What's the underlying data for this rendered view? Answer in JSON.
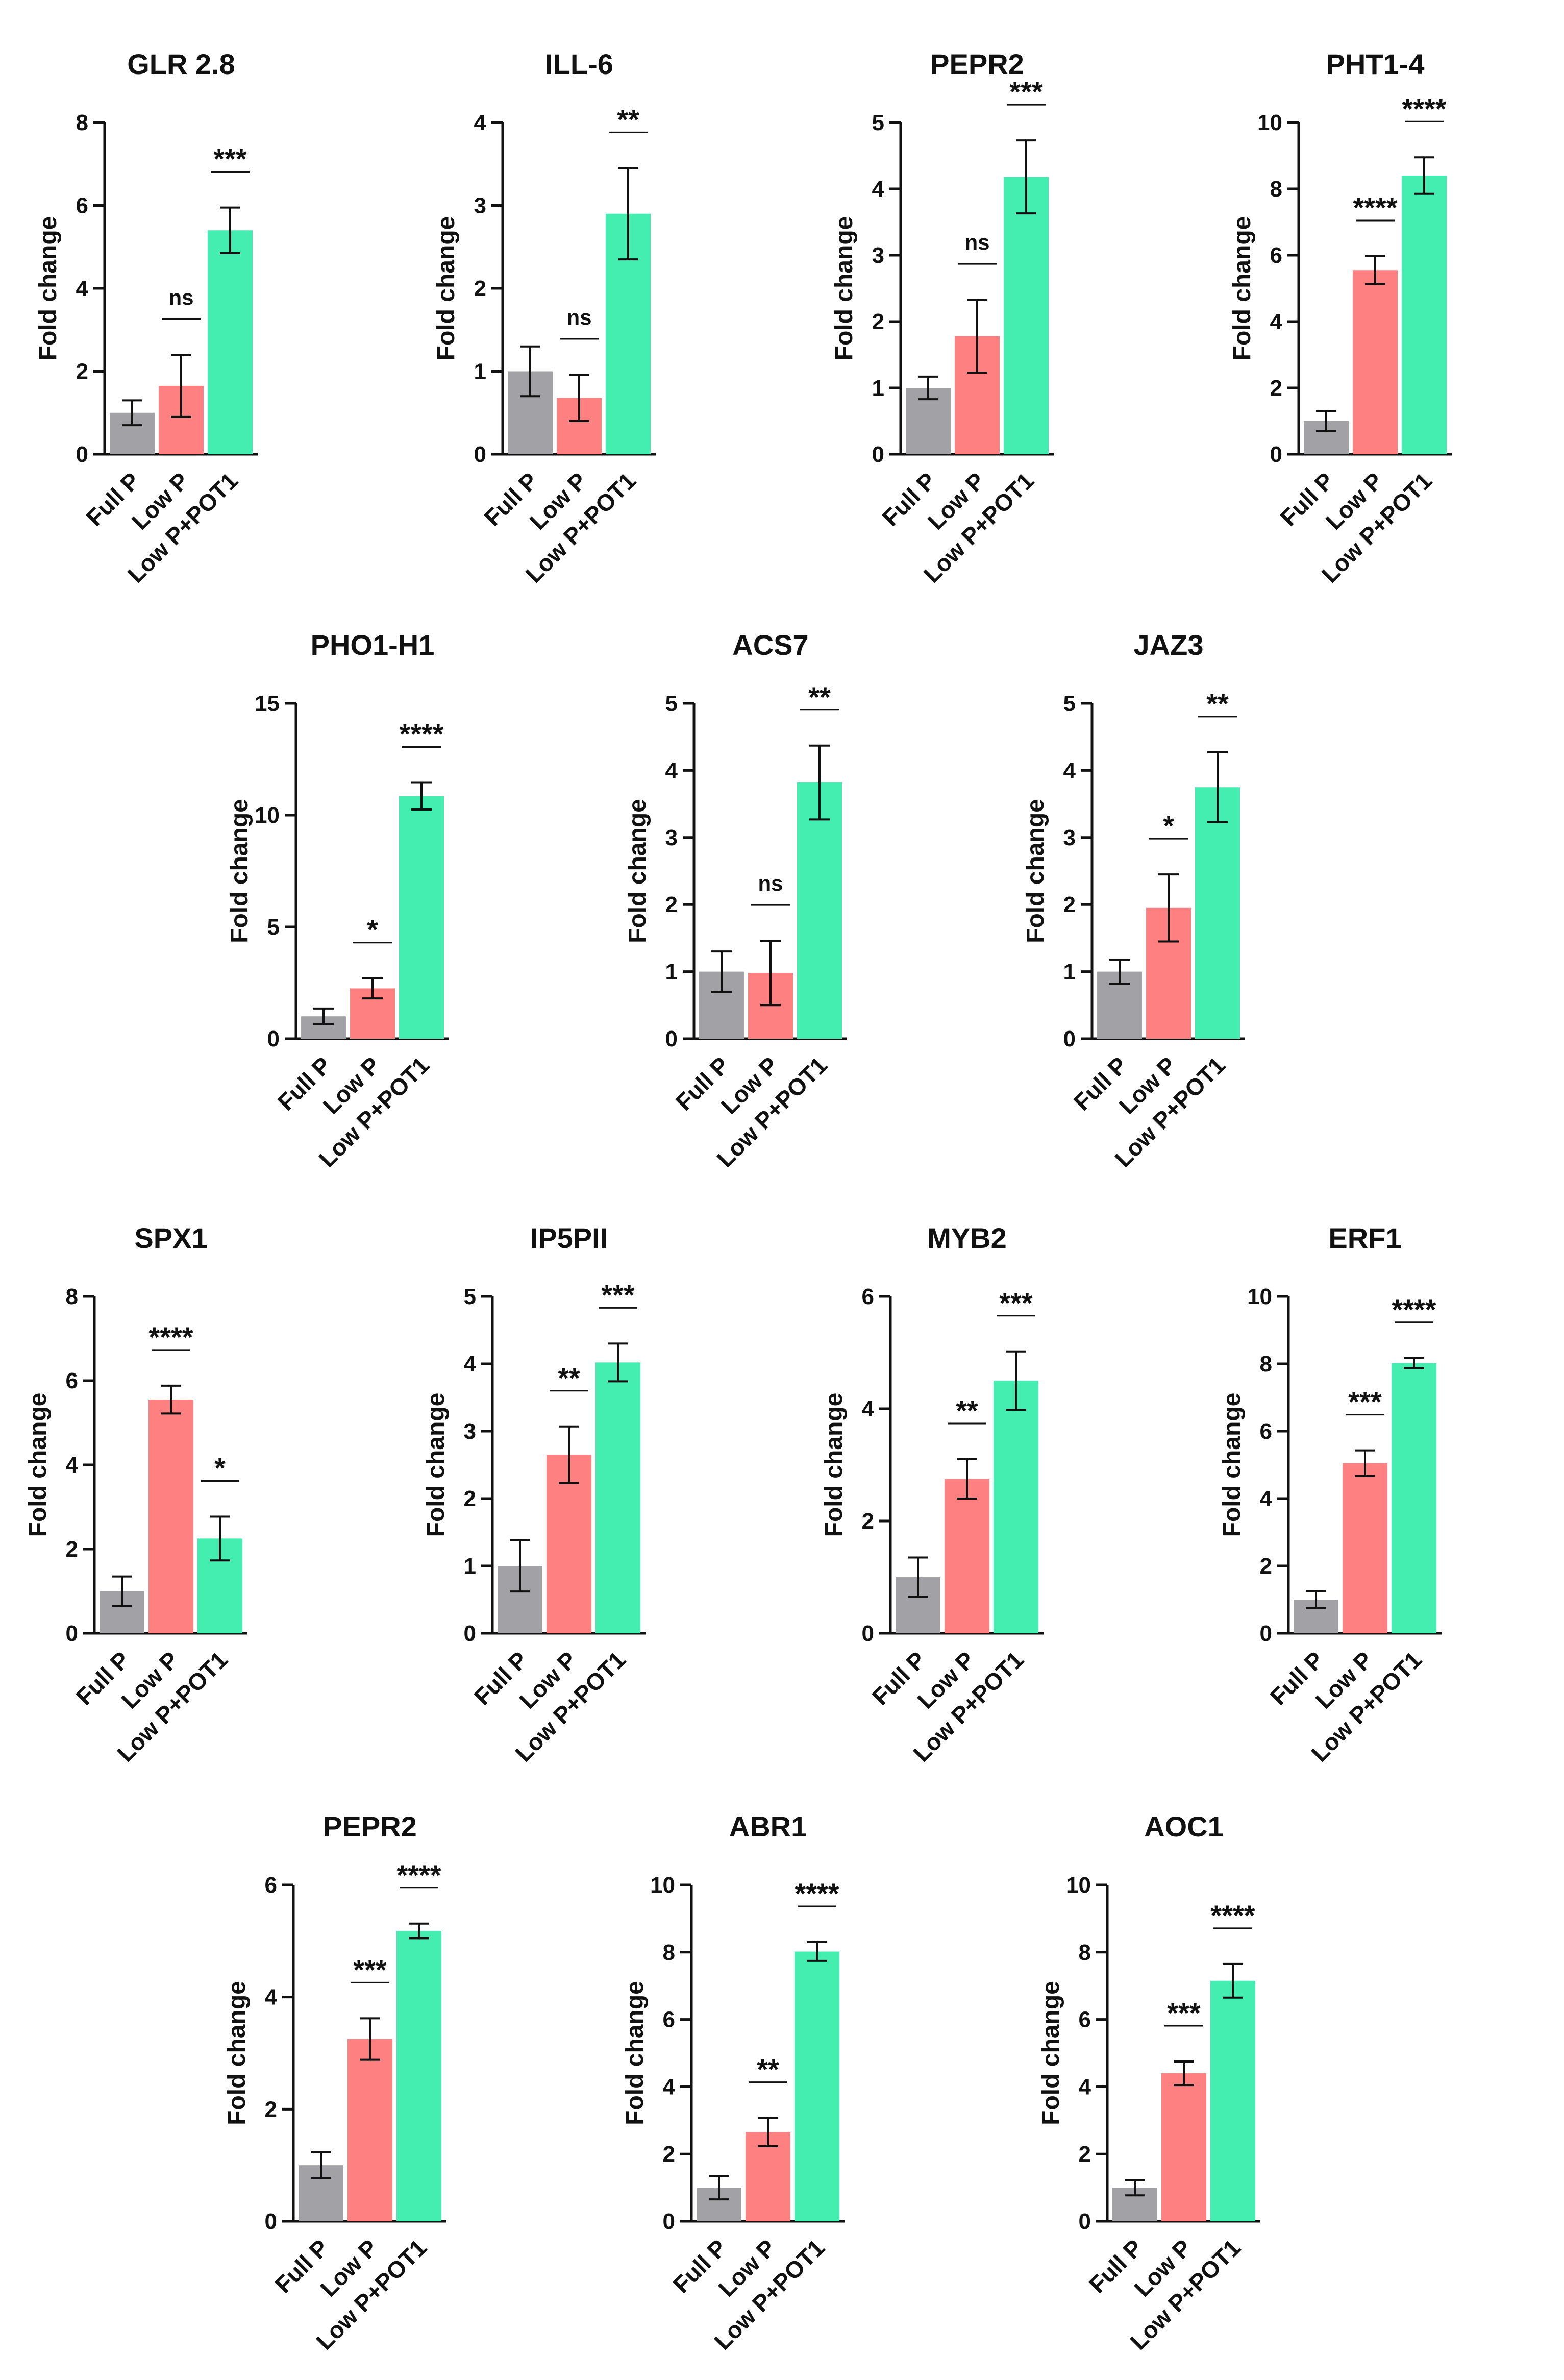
{
  "figure": {
    "categories": [
      "Full P",
      "Low P",
      "Low P+POT1"
    ],
    "ylabel": "Fold change",
    "colors": {
      "Full P": "#A2A1A6",
      "Low P": "#FF8080",
      "Low P+POT1": "#44EEB0",
      "axis": "#111111"
    }
  },
  "chart_data": [
    {
      "type": "bar",
      "title": "GLR 2.8",
      "ylabel": "Fold change",
      "categories": [
        "Full P",
        "Low P",
        "Low P+POT1"
      ],
      "yticks": [
        0,
        2,
        4,
        6,
        8
      ],
      "ylim": [
        0,
        8
      ],
      "values": [
        1.0,
        1.65,
        5.4
      ],
      "errors": [
        0.3,
        0.75,
        0.55
      ],
      "significance": [
        "",
        "ns",
        "***"
      ]
    },
    {
      "type": "bar",
      "title": "ILL-6",
      "ylabel": "Fold change",
      "categories": [
        "Full P",
        "Low P",
        "Low P+POT1"
      ],
      "yticks": [
        0,
        1,
        2,
        3,
        4
      ],
      "ylim": [
        0,
        4
      ],
      "values": [
        1.0,
        0.68,
        2.9
      ],
      "errors": [
        0.3,
        0.28,
        0.55
      ],
      "significance": [
        "",
        "ns",
        "**"
      ]
    },
    {
      "type": "bar",
      "title": "PEPR2",
      "ylabel": "Fold change",
      "categories": [
        "Full P",
        "Low P",
        "Low P+POT1"
      ],
      "yticks": [
        0,
        1,
        2,
        3,
        4,
        5
      ],
      "ylim": [
        0,
        5
      ],
      "values": [
        1.0,
        1.78,
        4.18
      ],
      "errors": [
        0.17,
        0.55,
        0.55
      ],
      "significance": [
        "",
        "ns",
        "***"
      ]
    },
    {
      "type": "bar",
      "title": "PHT1-4",
      "ylabel": "Fold change",
      "categories": [
        "Full P",
        "Low P",
        "Low P+POT1"
      ],
      "yticks": [
        0,
        2,
        4,
        6,
        8,
        10
      ],
      "ylim": [
        0,
        10
      ],
      "values": [
        1.0,
        5.55,
        8.4
      ],
      "errors": [
        0.3,
        0.42,
        0.55
      ],
      "significance": [
        "",
        "****",
        "****"
      ]
    },
    {
      "type": "bar",
      "title": "PHO1-H1",
      "ylabel": "Fold change",
      "categories": [
        "Full P",
        "Low P",
        "Low P+POT1"
      ],
      "yticks": [
        0,
        5,
        10,
        15
      ],
      "ylim": [
        0,
        15
      ],
      "values": [
        1.0,
        2.25,
        10.85
      ],
      "errors": [
        0.35,
        0.45,
        0.6
      ],
      "significance": [
        "",
        "*",
        "****"
      ]
    },
    {
      "type": "bar",
      "title": "ACS7",
      "ylabel": "Fold change",
      "categories": [
        "Full P",
        "Low P",
        "Low P+POT1"
      ],
      "yticks": [
        0,
        1,
        2,
        3,
        4,
        5
      ],
      "ylim": [
        0,
        5
      ],
      "values": [
        1.0,
        0.98,
        3.82
      ],
      "errors": [
        0.3,
        0.48,
        0.55
      ],
      "significance": [
        "",
        "ns",
        "**"
      ]
    },
    {
      "type": "bar",
      "title": "JAZ3",
      "ylabel": "Fold change",
      "categories": [
        "Full P",
        "Low P",
        "Low P+POT1"
      ],
      "yticks": [
        0,
        1,
        2,
        3,
        4,
        5
      ],
      "ylim": [
        0,
        5
      ],
      "values": [
        1.0,
        1.95,
        3.75
      ],
      "errors": [
        0.18,
        0.5,
        0.52
      ],
      "significance": [
        "",
        "*",
        "**"
      ]
    },
    {
      "type": "bar",
      "title": "SPX1",
      "ylabel": "Fold change",
      "categories": [
        "Full P",
        "Low P",
        "Low P+POT1"
      ],
      "yticks": [
        0,
        2,
        4,
        6,
        8
      ],
      "ylim": [
        0,
        8
      ],
      "values": [
        1.0,
        5.55,
        2.25
      ],
      "errors": [
        0.35,
        0.33,
        0.52
      ],
      "significance": [
        "",
        "****",
        "*"
      ]
    },
    {
      "type": "bar",
      "title": "IP5PII",
      "ylabel": "Fold change",
      "categories": [
        "Full P",
        "Low P",
        "Low P+POT1"
      ],
      "yticks": [
        0,
        1,
        2,
        3,
        4,
        5
      ],
      "ylim": [
        0,
        5
      ],
      "values": [
        1.0,
        2.65,
        4.02
      ],
      "errors": [
        0.38,
        0.42,
        0.28
      ],
      "significance": [
        "",
        "**",
        "***"
      ]
    },
    {
      "type": "bar",
      "title": "MYB2",
      "ylabel": "Fold change",
      "categories": [
        "Full P",
        "Low P",
        "Low P+POT1"
      ],
      "yticks": [
        0,
        2,
        4,
        6
      ],
      "ylim": [
        0,
        6
      ],
      "values": [
        1.0,
        2.75,
        4.5
      ],
      "errors": [
        0.35,
        0.35,
        0.52
      ],
      "significance": [
        "",
        "**",
        "***"
      ]
    },
    {
      "type": "bar",
      "title": "ERF1",
      "ylabel": "Fold change",
      "categories": [
        "Full P",
        "Low P",
        "Low P+POT1"
      ],
      "yticks": [
        0,
        2,
        4,
        6,
        8,
        10
      ],
      "ylim": [
        0,
        10
      ],
      "values": [
        1.0,
        5.05,
        8.02
      ],
      "errors": [
        0.25,
        0.38,
        0.15
      ],
      "significance": [
        "",
        "***",
        "****"
      ]
    },
    {
      "type": "bar",
      "title": "PEPR2",
      "ylabel": "Fold change",
      "categories": [
        "Full P",
        "Low P",
        "Low P+POT1"
      ],
      "yticks": [
        0,
        2,
        4,
        6
      ],
      "ylim": [
        0,
        6
      ],
      "values": [
        1.0,
        3.25,
        5.18
      ],
      "errors": [
        0.23,
        0.37,
        0.13
      ],
      "significance": [
        "",
        "***",
        "****"
      ]
    },
    {
      "type": "bar",
      "title": "ABR1",
      "ylabel": "Fold change",
      "categories": [
        "Full P",
        "Low P",
        "Low P+POT1"
      ],
      "yticks": [
        0,
        2,
        4,
        6,
        8,
        10
      ],
      "ylim": [
        0,
        10
      ],
      "values": [
        1.0,
        2.65,
        8.02
      ],
      "errors": [
        0.35,
        0.42,
        0.28
      ],
      "significance": [
        "",
        "**",
        "****"
      ]
    },
    {
      "type": "bar",
      "title": "AOC1",
      "ylabel": "Fold change",
      "categories": [
        "Full P",
        "Low P",
        "Low P+POT1"
      ],
      "yticks": [
        0,
        2,
        4,
        6,
        8,
        10
      ],
      "ylim": [
        0,
        10
      ],
      "values": [
        1.0,
        4.4,
        7.15
      ],
      "errors": [
        0.23,
        0.35,
        0.5
      ],
      "significance": [
        "",
        "***",
        "****"
      ]
    }
  ]
}
